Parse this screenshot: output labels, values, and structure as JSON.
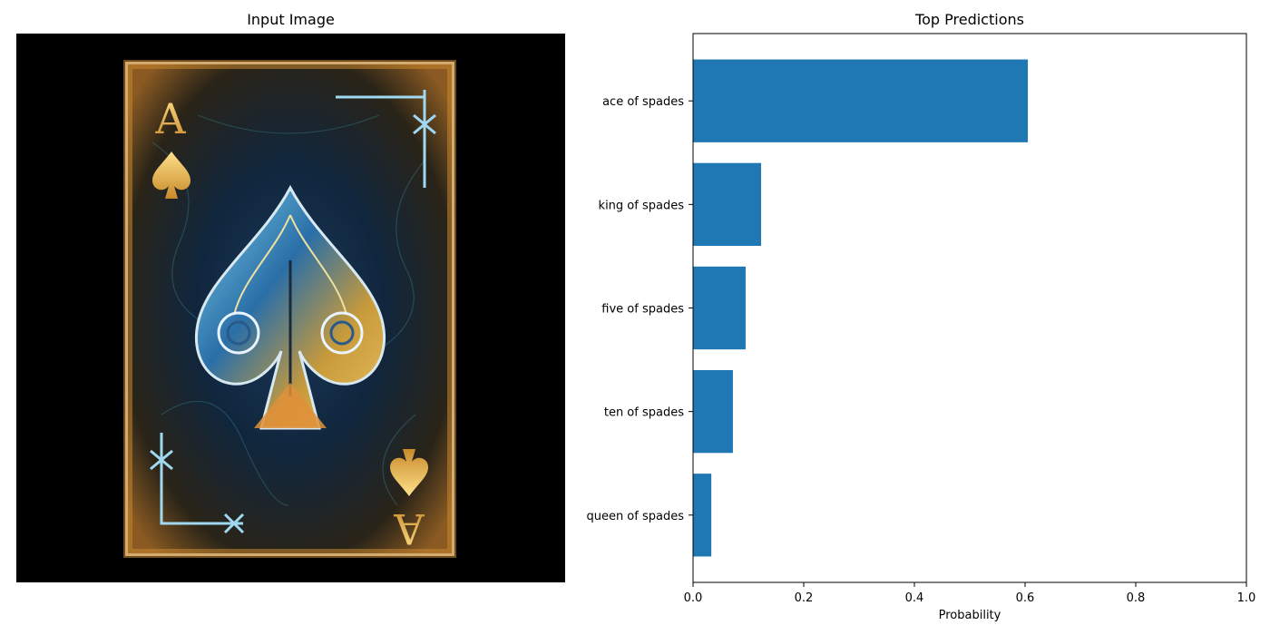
{
  "left_panel": {
    "title": "Input Image"
  },
  "chart_data": {
    "type": "bar",
    "orientation": "horizontal",
    "title": "Top Predictions",
    "xlabel": "Probability",
    "ylabel": "",
    "xlim": [
      0,
      1.0
    ],
    "xticks": [
      "0.0",
      "0.2",
      "0.4",
      "0.6",
      "0.8",
      "1.0"
    ],
    "categories": [
      "ace of spades",
      "king of spades",
      "five of spades",
      "ten of spades",
      "queen of spades"
    ],
    "values": [
      0.605,
      0.123,
      0.095,
      0.072,
      0.033
    ],
    "bar_color": "#1f77b4",
    "grid": false
  }
}
